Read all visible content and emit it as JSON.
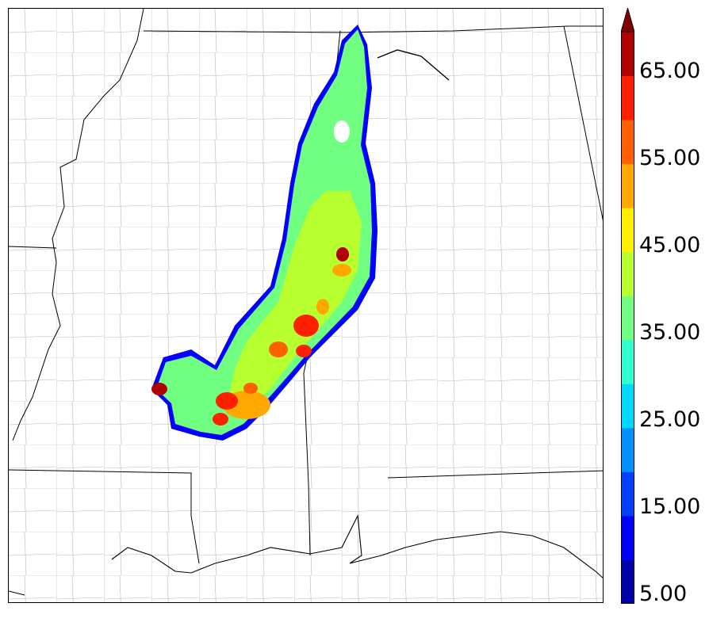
{
  "colorbar": {
    "tick_labels": [
      "5.00",
      "15.00",
      "25.00",
      "35.00",
      "45.00",
      "55.00",
      "65.00"
    ],
    "colors": [
      "#0000a8",
      "#0000ff",
      "#0040ff",
      "#0090ff",
      "#00d8ff",
      "#30ffd0",
      "#70ff80",
      "#b8ff30",
      "#fff000",
      "#ffa800",
      "#ff6000",
      "#ff2000",
      "#b00000",
      "#800000"
    ],
    "extend": "max"
  },
  "map": {
    "features": [
      "state-borders",
      "county-borders",
      "coastline",
      "rivers"
    ],
    "field_colors": {
      "low": "#70ff80",
      "mid": "#b8ff30",
      "high": "#fff000",
      "orange": "#ffa800",
      "red": "#ff2000",
      "core": "#b00000",
      "edge": "#0000ff"
    }
  }
}
